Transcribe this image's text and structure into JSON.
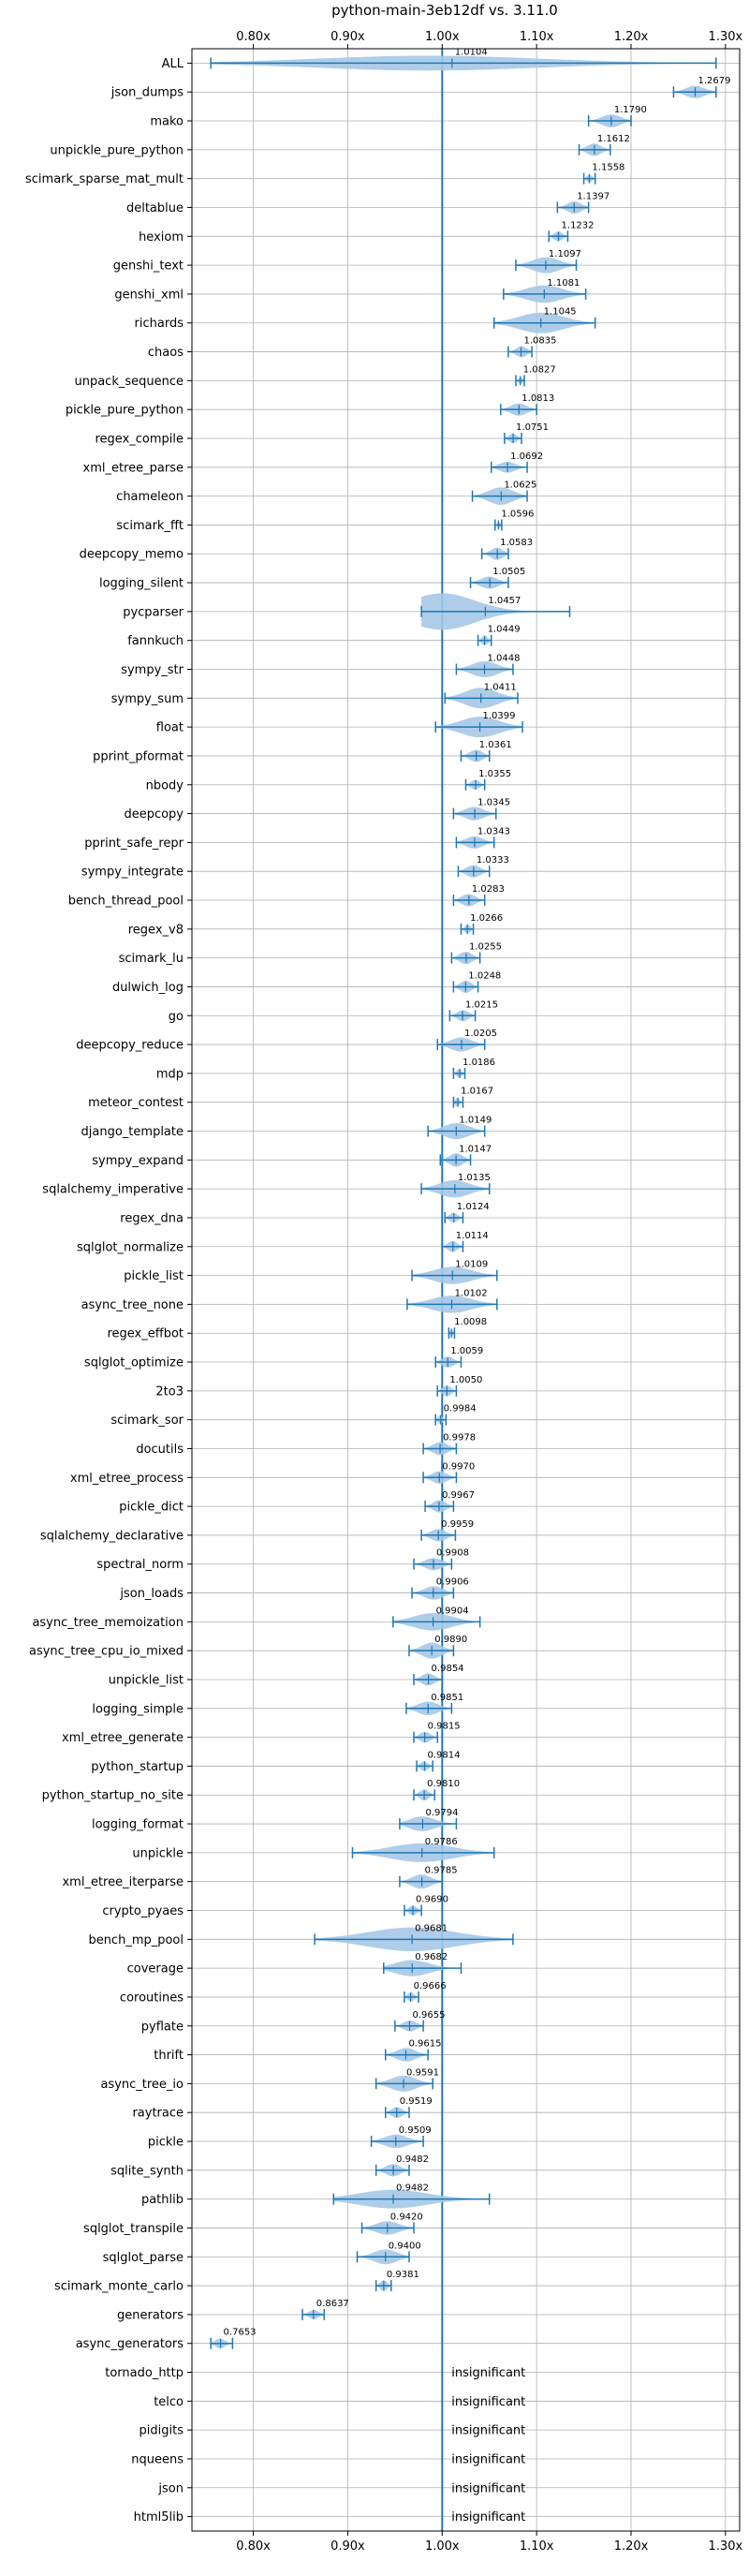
{
  "chart_data": {
    "type": "violin",
    "title": "python-main-3eb12df vs. 3.11.0",
    "xlabel": "",
    "ylabel": "",
    "xlim": [
      0.735,
      1.315
    ],
    "xticks": [
      0.8,
      0.9,
      1.0,
      1.1,
      1.2,
      1.3
    ],
    "xtick_labels": [
      "0.80x",
      "0.90x",
      "1.00x",
      "1.10x",
      "1.20x",
      "1.30x"
    ],
    "reference_line": 1.0,
    "grid": true,
    "color": "#1f77b4",
    "violin_fill": "#a6c8e5",
    "insignificant_label": "insignificant",
    "benchmarks": [
      {
        "name": "ALL",
        "value": "1.0104",
        "center": 0.985,
        "min": 0.755,
        "max": 1.29,
        "width": 0.016
      },
      {
        "name": "json_dumps",
        "value": "1.2679",
        "center": 1.268,
        "min": 1.245,
        "max": 1.29,
        "width": 0.012
      },
      {
        "name": "mako",
        "value": "1.1790",
        "center": 1.179,
        "min": 1.155,
        "max": 1.2,
        "width": 0.013
      },
      {
        "name": "unpickle_pure_python",
        "value": "1.1612",
        "center": 1.161,
        "min": 1.145,
        "max": 1.178,
        "width": 0.012
      },
      {
        "name": "scimark_sparse_mat_mult",
        "value": "1.1558",
        "center": 1.156,
        "min": 1.15,
        "max": 1.162,
        "width": 0.005
      },
      {
        "name": "deltablue",
        "value": "1.1397",
        "center": 1.14,
        "min": 1.122,
        "max": 1.155,
        "width": 0.012
      },
      {
        "name": "hexiom",
        "value": "1.1232",
        "center": 1.123,
        "min": 1.113,
        "max": 1.133,
        "width": 0.008
      },
      {
        "name": "genshi_text",
        "value": "1.1097",
        "center": 1.11,
        "min": 1.078,
        "max": 1.142,
        "width": 0.018
      },
      {
        "name": "genshi_xml",
        "value": "1.1081",
        "center": 1.108,
        "min": 1.065,
        "max": 1.152,
        "width": 0.02
      },
      {
        "name": "richards",
        "value": "1.1045",
        "center": 1.105,
        "min": 1.055,
        "max": 1.162,
        "width": 0.025
      },
      {
        "name": "chaos",
        "value": "1.0835",
        "center": 1.084,
        "min": 1.07,
        "max": 1.095,
        "width": 0.01
      },
      {
        "name": "unpack_sequence",
        "value": "1.0827",
        "center": 1.083,
        "min": 1.078,
        "max": 1.087,
        "width": 0.004
      },
      {
        "name": "pickle_pure_python",
        "value": "1.0813",
        "center": 1.081,
        "min": 1.062,
        "max": 1.1,
        "width": 0.012
      },
      {
        "name": "regex_compile",
        "value": "1.0751",
        "center": 1.075,
        "min": 1.066,
        "max": 1.084,
        "width": 0.008
      },
      {
        "name": "xml_etree_parse",
        "value": "1.0692",
        "center": 1.069,
        "min": 1.052,
        "max": 1.09,
        "width": 0.01
      },
      {
        "name": "chameleon",
        "value": "1.0625",
        "center": 1.062,
        "min": 1.032,
        "max": 1.09,
        "width": 0.02
      },
      {
        "name": "scimark_fft",
        "value": "1.0596",
        "center": 1.06,
        "min": 1.056,
        "max": 1.063,
        "width": 0.003
      },
      {
        "name": "deepcopy_memo",
        "value": "1.0583",
        "center": 1.058,
        "min": 1.042,
        "max": 1.07,
        "width": 0.012
      },
      {
        "name": "logging_silent",
        "value": "1.0505",
        "center": 1.05,
        "min": 1.03,
        "max": 1.07,
        "width": 0.012
      },
      {
        "name": "pycparser",
        "value": "1.0457",
        "center": 1.0,
        "min": 0.978,
        "max": 1.135,
        "width": 0.05
      },
      {
        "name": "fannkuch",
        "value": "1.0449",
        "center": 1.045,
        "min": 1.038,
        "max": 1.052,
        "width": 0.008
      },
      {
        "name": "sympy_str",
        "value": "1.0448",
        "center": 1.045,
        "min": 1.015,
        "max": 1.075,
        "width": 0.018
      },
      {
        "name": "sympy_sum",
        "value": "1.0411",
        "center": 1.041,
        "min": 1.003,
        "max": 1.08,
        "width": 0.025
      },
      {
        "name": "float",
        "value": "1.0399",
        "center": 1.04,
        "min": 0.993,
        "max": 1.085,
        "width": 0.025
      },
      {
        "name": "pprint_pformat",
        "value": "1.0361",
        "center": 1.036,
        "min": 1.02,
        "max": 1.05,
        "width": 0.012
      },
      {
        "name": "nbody",
        "value": "1.0355",
        "center": 1.035,
        "min": 1.025,
        "max": 1.045,
        "width": 0.008
      },
      {
        "name": "deepcopy",
        "value": "1.0345",
        "center": 1.034,
        "min": 1.012,
        "max": 1.057,
        "width": 0.014
      },
      {
        "name": "pprint_safe_repr",
        "value": "1.0343",
        "center": 1.034,
        "min": 1.015,
        "max": 1.055,
        "width": 0.012
      },
      {
        "name": "sympy_integrate",
        "value": "1.0333",
        "center": 1.033,
        "min": 1.017,
        "max": 1.05,
        "width": 0.012
      },
      {
        "name": "bench_thread_pool",
        "value": "1.0283",
        "center": 1.028,
        "min": 1.012,
        "max": 1.045,
        "width": 0.012
      },
      {
        "name": "regex_v8",
        "value": "1.0266",
        "center": 1.027,
        "min": 1.02,
        "max": 1.033,
        "width": 0.007
      },
      {
        "name": "scimark_lu",
        "value": "1.0255",
        "center": 1.025,
        "min": 1.01,
        "max": 1.04,
        "width": 0.012
      },
      {
        "name": "dulwich_log",
        "value": "1.0248",
        "center": 1.025,
        "min": 1.012,
        "max": 1.038,
        "width": 0.012
      },
      {
        "name": "go",
        "value": "1.0215",
        "center": 1.022,
        "min": 1.008,
        "max": 1.035,
        "width": 0.01
      },
      {
        "name": "deepcopy_reduce",
        "value": "1.0205",
        "center": 1.02,
        "min": 0.995,
        "max": 1.045,
        "width": 0.015
      },
      {
        "name": "mdp",
        "value": "1.0186",
        "center": 1.018,
        "min": 1.012,
        "max": 1.024,
        "width": 0.006
      },
      {
        "name": "meteor_contest",
        "value": "1.0167",
        "center": 1.016,
        "min": 1.012,
        "max": 1.022,
        "width": 0.006
      },
      {
        "name": "django_template",
        "value": "1.0149",
        "center": 1.015,
        "min": 0.985,
        "max": 1.045,
        "width": 0.018
      },
      {
        "name": "sympy_expand",
        "value": "1.0147",
        "center": 1.015,
        "min": 0.998,
        "max": 1.03,
        "width": 0.014
      },
      {
        "name": "sqlalchemy_imperative",
        "value": "1.0135",
        "center": 1.013,
        "min": 0.978,
        "max": 1.05,
        "width": 0.02
      },
      {
        "name": "regex_dna",
        "value": "1.0124",
        "center": 1.012,
        "min": 1.003,
        "max": 1.022,
        "width": 0.008
      },
      {
        "name": "sqlglot_normalize",
        "value": "1.0114",
        "center": 1.011,
        "min": 1.0,
        "max": 1.022,
        "width": 0.01
      },
      {
        "name": "pickle_list",
        "value": "1.0109",
        "center": 1.011,
        "min": 0.968,
        "max": 1.058,
        "width": 0.02
      },
      {
        "name": "async_tree_none",
        "value": "1.0102",
        "center": 1.01,
        "min": 0.963,
        "max": 1.058,
        "width": 0.02
      },
      {
        "name": "regex_effbot",
        "value": "1.0098",
        "center": 1.01,
        "min": 1.007,
        "max": 1.013,
        "width": 0.004
      },
      {
        "name": "sqlglot_optimize",
        "value": "1.0059",
        "center": 1.006,
        "min": 0.993,
        "max": 1.02,
        "width": 0.01
      },
      {
        "name": "2to3",
        "value": "1.0050",
        "center": 1.005,
        "min": 0.995,
        "max": 1.015,
        "width": 0.01
      },
      {
        "name": "scimark_sor",
        "value": "0.9984",
        "center": 0.998,
        "min": 0.993,
        "max": 1.004,
        "width": 0.006
      },
      {
        "name": "docutils",
        "value": "0.9978",
        "center": 0.998,
        "min": 0.98,
        "max": 1.015,
        "width": 0.013
      },
      {
        "name": "xml_etree_process",
        "value": "0.9970",
        "center": 0.997,
        "min": 0.98,
        "max": 1.015,
        "width": 0.012
      },
      {
        "name": "pickle_dict",
        "value": "0.9967",
        "center": 0.997,
        "min": 0.982,
        "max": 1.012,
        "width": 0.012
      },
      {
        "name": "sqlalchemy_declarative",
        "value": "0.9959",
        "center": 0.996,
        "min": 0.978,
        "max": 1.014,
        "width": 0.012
      },
      {
        "name": "spectral_norm",
        "value": "0.9908",
        "center": 0.991,
        "min": 0.97,
        "max": 1.01,
        "width": 0.012
      },
      {
        "name": "json_loads",
        "value": "0.9906",
        "center": 0.991,
        "min": 0.968,
        "max": 1.012,
        "width": 0.014
      },
      {
        "name": "async_tree_memoization",
        "value": "0.9904",
        "center": 0.99,
        "min": 0.948,
        "max": 1.04,
        "width": 0.02
      },
      {
        "name": "async_tree_cpu_io_mixed",
        "value": "0.9890",
        "center": 0.989,
        "min": 0.965,
        "max": 1.012,
        "width": 0.018
      },
      {
        "name": "unpickle_list",
        "value": "0.9854",
        "center": 0.985,
        "min": 0.97,
        "max": 1.0,
        "width": 0.012
      },
      {
        "name": "logging_simple",
        "value": "0.9851",
        "center": 0.985,
        "min": 0.962,
        "max": 1.01,
        "width": 0.014
      },
      {
        "name": "xml_etree_generate",
        "value": "0.9815",
        "center": 0.982,
        "min": 0.97,
        "max": 0.995,
        "width": 0.01
      },
      {
        "name": "python_startup",
        "value": "0.9814",
        "center": 0.981,
        "min": 0.973,
        "max": 0.99,
        "width": 0.008
      },
      {
        "name": "python_startup_no_site",
        "value": "0.9810",
        "center": 0.981,
        "min": 0.97,
        "max": 0.992,
        "width": 0.01
      },
      {
        "name": "logging_format",
        "value": "0.9794",
        "center": 0.979,
        "min": 0.955,
        "max": 1.015,
        "width": 0.016
      },
      {
        "name": "unpickle",
        "value": "0.9786",
        "center": 0.978,
        "min": 0.905,
        "max": 1.055,
        "width": 0.022
      },
      {
        "name": "xml_etree_iterparse",
        "value": "0.9785",
        "center": 0.978,
        "min": 0.955,
        "max": 1.0,
        "width": 0.015
      },
      {
        "name": "crypto_pyaes",
        "value": "0.9690",
        "center": 0.969,
        "min": 0.96,
        "max": 0.978,
        "width": 0.008
      },
      {
        "name": "bench_mp_pool",
        "value": "0.9681",
        "center": 0.968,
        "min": 0.865,
        "max": 1.075,
        "width": 0.03
      },
      {
        "name": "coverage",
        "value": "0.9682",
        "center": 0.968,
        "min": 0.938,
        "max": 1.02,
        "width": 0.018
      },
      {
        "name": "coroutines",
        "value": "0.9666",
        "center": 0.967,
        "min": 0.96,
        "max": 0.975,
        "width": 0.007
      },
      {
        "name": "pyflate",
        "value": "0.9655",
        "center": 0.966,
        "min": 0.95,
        "max": 0.98,
        "width": 0.01
      },
      {
        "name": "thrift",
        "value": "0.9615",
        "center": 0.962,
        "min": 0.94,
        "max": 0.985,
        "width": 0.014
      },
      {
        "name": "async_tree_io",
        "value": "0.9591",
        "center": 0.959,
        "min": 0.93,
        "max": 0.99,
        "width": 0.018
      },
      {
        "name": "raytrace",
        "value": "0.9519",
        "center": 0.952,
        "min": 0.94,
        "max": 0.965,
        "width": 0.01
      },
      {
        "name": "pickle",
        "value": "0.9509",
        "center": 0.951,
        "min": 0.925,
        "max": 0.98,
        "width": 0.014
      },
      {
        "name": "sqlite_synth",
        "value": "0.9482",
        "center": 0.948,
        "min": 0.93,
        "max": 0.965,
        "width": 0.012
      },
      {
        "name": "pathlib",
        "value": "0.9482",
        "center": 0.948,
        "min": 0.885,
        "max": 1.05,
        "width": 0.022
      },
      {
        "name": "sqlglot_transpile",
        "value": "0.9420",
        "center": 0.942,
        "min": 0.915,
        "max": 0.97,
        "width": 0.014
      },
      {
        "name": "sqlglot_parse",
        "value": "0.9400",
        "center": 0.94,
        "min": 0.91,
        "max": 0.965,
        "width": 0.016
      },
      {
        "name": "scimark_monte_carlo",
        "value": "0.9381",
        "center": 0.938,
        "min": 0.93,
        "max": 0.946,
        "width": 0.01
      },
      {
        "name": "generators",
        "value": "0.8637",
        "center": 0.864,
        "min": 0.852,
        "max": 0.875,
        "width": 0.007
      },
      {
        "name": "async_generators",
        "value": "0.7653",
        "center": 0.765,
        "min": 0.755,
        "max": 0.778,
        "width": 0.008
      },
      {
        "name": "tornado_http",
        "value": "insignificant"
      },
      {
        "name": "telco",
        "value": "insignificant"
      },
      {
        "name": "pidigits",
        "value": "insignificant"
      },
      {
        "name": "nqueens",
        "value": "insignificant"
      },
      {
        "name": "json",
        "value": "insignificant"
      },
      {
        "name": "html5lib",
        "value": "insignificant"
      }
    ]
  }
}
